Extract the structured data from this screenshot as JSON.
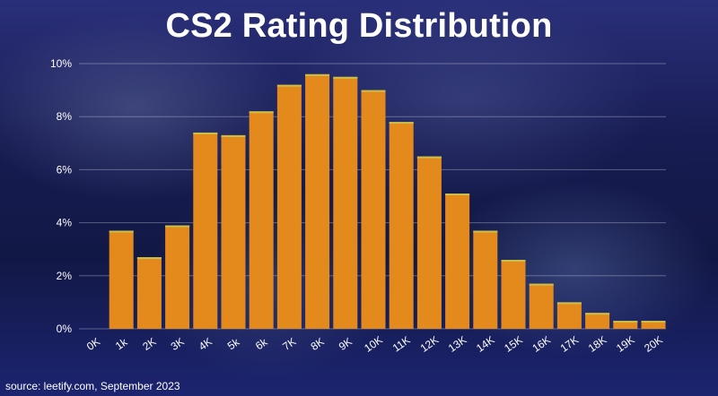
{
  "title": "CS2 Rating Distribution",
  "source": "source: leetify.com, September 2023",
  "colors": {
    "bar": "#e48a1d",
    "bar_stripe": "#ff6a2e",
    "bar_edge": "#c8c04a",
    "grid": "rgba(255,255,255,0.30)",
    "text": "#ffffff"
  },
  "chart_data": {
    "type": "bar",
    "title": "CS2 Rating Distribution",
    "categories": [
      "0K",
      "1k",
      "2K",
      "3K",
      "4K",
      "5k",
      "6k",
      "7K",
      "8K",
      "9K",
      "10K",
      "11K",
      "12K",
      "13K",
      "14K",
      "15K",
      "16K",
      "17K",
      "18K",
      "19K",
      "20K"
    ],
    "values": [
      0,
      3.7,
      2.7,
      3.9,
      7.4,
      7.3,
      8.2,
      9.2,
      9.6,
      9.5,
      9.0,
      7.8,
      6.5,
      5.1,
      3.7,
      2.6,
      1.7,
      1.0,
      0.6,
      0.3,
      0.3
    ],
    "ylim": [
      0,
      10
    ],
    "yticks": [
      0,
      2,
      4,
      6,
      8,
      10
    ],
    "ytick_labels": [
      "0%",
      "2%",
      "4%",
      "6%",
      "8%",
      "10%"
    ],
    "grid": true
  }
}
